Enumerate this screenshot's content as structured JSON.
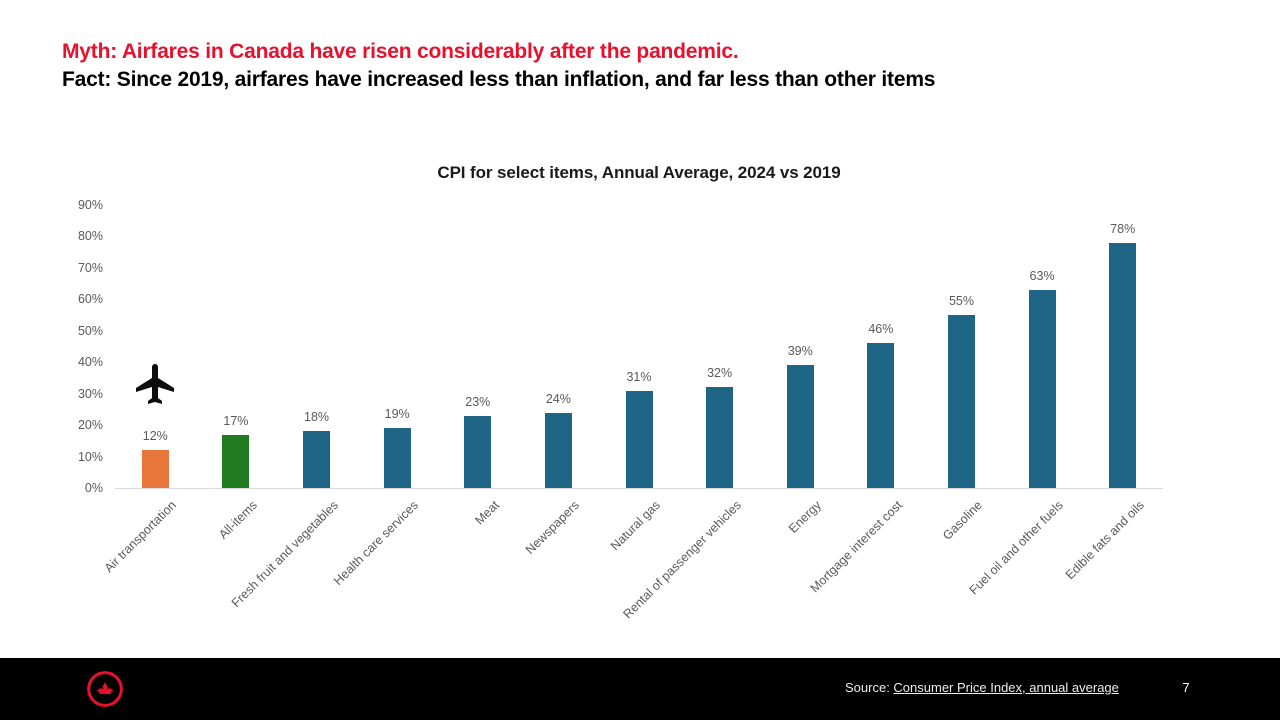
{
  "header": {
    "myth": "Myth: Airfares in Canada have risen considerably after the pandemic.",
    "fact": "Fact: Since 2019, airfares have increased less than inflation, and far less than other items"
  },
  "chart_data": {
    "type": "bar",
    "title": "CPI for select items, Annual Average, 2024 vs 2019",
    "categories": [
      "Air transportation",
      "All-items",
      "Fresh fruit and vegetables",
      "Health care services",
      "Meat",
      "Newspapers",
      "Natural gas",
      "Rental of passenger vehicles",
      "Energy",
      "Mortgage interest cost",
      "Gasoline",
      "Fuel oil and other fuels",
      "Edible fats and oils"
    ],
    "values": [
      12,
      17,
      18,
      19,
      23,
      24,
      31,
      32,
      39,
      46,
      55,
      63,
      78
    ],
    "value_label_suffix": "%",
    "xlabel": "",
    "ylabel": "",
    "ylim": [
      0,
      90
    ],
    "ytick_step": 10,
    "ytick_suffix": "%",
    "grid": false,
    "legend_position": "none",
    "x_label_rotation_deg": 45,
    "bar_colors": [
      "#E8763A",
      "#217B21",
      "#1F6586",
      "#1F6586",
      "#1F6586",
      "#1F6586",
      "#1F6586",
      "#1F6586",
      "#1F6586",
      "#1F6586",
      "#1F6586",
      "#1F6586",
      "#1F6586"
    ],
    "annotation": "airplane icon above Air transportation bar"
  },
  "colors": {
    "title_red": "#E8112D",
    "bar_blue": "#1F6586",
    "bar_orange": "#E8763A",
    "bar_green": "#217B21",
    "axis_text_gray": "#595959",
    "axis_line_gray": "#D9D9D9",
    "footer_bg": "#000000",
    "logo_red": "#E8112D",
    "plane_black": "#0d0d0d"
  },
  "footer": {
    "source_prefix": "Source: ",
    "source_link": "Consumer Price Index, annual average",
    "page_number": "7"
  }
}
